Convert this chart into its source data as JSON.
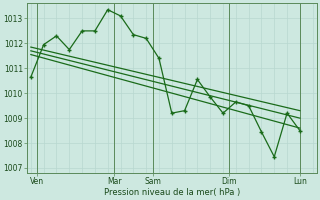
{
  "bg_color": "#cde8e0",
  "grid_major_color": "#b8d8d0",
  "grid_minor_color": "#d4eee8",
  "line_color": "#1a6b1a",
  "dark_line_color": "#2d6b2d",
  "ylim": [
    1006.8,
    1013.6
  ],
  "xlim": [
    -0.3,
    22.3
  ],
  "ylabel_text": "Pression niveau de la mer( hPa )",
  "xtick_labels": [
    "Ven",
    "Mar",
    "Sam",
    "Dim",
    "Lun"
  ],
  "xtick_positions": [
    0.5,
    6.5,
    9.5,
    15.5,
    21.0
  ],
  "vline_positions": [
    0.5,
    6.5,
    9.5,
    15.5,
    21.0
  ],
  "ytick_values": [
    1007,
    1008,
    1009,
    1010,
    1011,
    1012,
    1013
  ],
  "main_line_x": [
    0,
    1,
    2,
    3,
    4,
    5,
    6,
    7,
    8,
    9,
    10,
    11,
    12,
    13,
    14,
    15,
    16,
    17,
    18,
    19,
    20,
    21
  ],
  "main_line_y": [
    1010.65,
    1011.95,
    1012.3,
    1011.75,
    1012.5,
    1012.5,
    1013.35,
    1013.1,
    1012.35,
    1012.2,
    1011.4,
    1009.2,
    1009.3,
    1010.55,
    1009.85,
    1009.2,
    1009.65,
    1009.5,
    1008.45,
    1007.45,
    1009.2,
    1008.5
  ],
  "trend1_x": [
    0,
    21
  ],
  "trend1_y": [
    1011.85,
    1009.3
  ],
  "trend2_x": [
    0,
    21
  ],
  "trend2_y": [
    1011.7,
    1009.0
  ],
  "trend3_x": [
    0,
    21
  ],
  "trend3_y": [
    1011.55,
    1008.6
  ]
}
